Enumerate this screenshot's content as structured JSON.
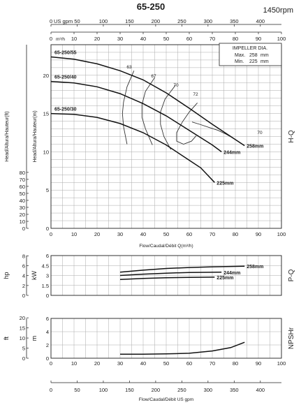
{
  "header": {
    "title": "65-250",
    "speed": "1450rpm"
  },
  "chart_data": [
    {
      "type": "line",
      "name": "H-Q",
      "panel_label": "H-Q",
      "top_axis_1": {
        "unit": "US gpm",
        "ticks": [
          0,
          50,
          100,
          150,
          200,
          250,
          300,
          350,
          400
        ],
        "max": 440.3
      },
      "top_axis_2": {
        "unit": "m³/h",
        "ticks": [
          0,
          10,
          20,
          30,
          40,
          50,
          60,
          70,
          80,
          90,
          100
        ]
      },
      "xlabel": "Flow/Caudal/Débit Q(m³/h)",
      "xticks": [
        0,
        10,
        20,
        30,
        40,
        50,
        60,
        70,
        80,
        90,
        100
      ],
      "xlim": [
        0,
        100
      ],
      "left_axis_outer": {
        "label": "Head/Altura/Hauteur(ft)",
        "ticks": [
          0,
          10,
          20,
          30,
          40,
          50,
          60,
          70,
          80
        ],
        "max": 262.5
      },
      "ylabel": "Head/Altura/Hauteur(m)",
      "yticks": [
        0,
        5,
        10,
        15,
        20
      ],
      "ylim": [
        0,
        24
      ],
      "impeller_box": {
        "title": "IMPELLER DIA.",
        "max_label": "Max.",
        "max_value": "258",
        "min_label": "Min.",
        "min_value": "225",
        "unit": "mm"
      },
      "series": [
        {
          "name": "65-250/55",
          "end_label": "258mm",
          "x": [
            0,
            10,
            20,
            30,
            40,
            50,
            60,
            70,
            80,
            84
          ],
          "y": [
            22.4,
            22.1,
            21.5,
            20.6,
            19.4,
            17.7,
            15.7,
            13.6,
            11.6,
            10.8
          ]
        },
        {
          "name": "65-250/40",
          "end_label": "244mm",
          "x": [
            0,
            10,
            20,
            30,
            40,
            50,
            60,
            70,
            74
          ],
          "y": [
            19.2,
            19.0,
            18.5,
            17.6,
            16.3,
            14.7,
            12.8,
            10.9,
            10.0
          ]
        },
        {
          "name": "65-250/30",
          "end_label": "225mm",
          "x": [
            0,
            10,
            20,
            30,
            40,
            50,
            60,
            65,
            71
          ],
          "y": [
            15.0,
            14.9,
            14.5,
            13.7,
            12.5,
            10.9,
            8.9,
            7.9,
            6.0
          ]
        }
      ],
      "efficiency_labels": [
        "63",
        "67",
        "70",
        "72",
        "70"
      ],
      "efficiency_contours": [
        {
          "label": "63",
          "x": [
            36,
            33,
            31.5,
            31,
            31.5,
            33
          ],
          "y": [
            20.6,
            18.5,
            16.5,
            15.0,
            13.3,
            11.0
          ]
        },
        {
          "label": "67",
          "x": [
            45,
            41,
            39.5,
            39.5,
            41,
            44
          ],
          "y": [
            19.7,
            17.9,
            16.2,
            14.5,
            13.0,
            10.9
          ]
        },
        {
          "label": "70",
          "x": [
            54,
            49.5,
            47.5,
            47.5,
            49,
            52
          ],
          "y": [
            18.7,
            16.9,
            15.2,
            13.6,
            12.0,
            10.3
          ]
        },
        {
          "label": "72",
          "x": [
            63.5,
            60,
            57,
            54.5,
            54.5,
            57.5,
            61,
            63
          ],
          "y": [
            16.4,
            15.2,
            13.9,
            12.5,
            11.4,
            11.0,
            11.4,
            12.1
          ]
        },
        {
          "label": "70",
          "x": [
            79,
            76,
            72.5,
            68.5,
            64.5,
            61.2
          ],
          "y": [
            11.8,
            12.3,
            12.8,
            13.2,
            13.6,
            13.9
          ]
        }
      ]
    },
    {
      "type": "line",
      "name": "P-Q",
      "panel_label": "P-Q",
      "left_axis_outer": {
        "label": "hp",
        "ticks": [
          0,
          2,
          4,
          6,
          8
        ],
        "max": 8.05
      },
      "ylabel": "kW",
      "yticks": [
        0,
        1.5,
        3,
        4.5,
        6
      ],
      "ytick_labels": [
        "0",
        "1.5",
        "3",
        "4.5",
        "6"
      ],
      "ylim": [
        0,
        6
      ],
      "xlim": [
        0,
        100
      ],
      "series": [
        {
          "name": "258mm",
          "x": [
            30,
            40,
            50,
            60,
            70,
            80,
            84
          ],
          "y": [
            3.5,
            3.8,
            4.05,
            4.2,
            4.3,
            4.37,
            4.4
          ]
        },
        {
          "name": "244mm",
          "x": [
            30,
            40,
            50,
            60,
            74
          ],
          "y": [
            3.0,
            3.2,
            3.35,
            3.45,
            3.5
          ]
        },
        {
          "name": "225mm",
          "x": [
            30,
            40,
            50,
            60,
            71
          ],
          "y": [
            2.4,
            2.55,
            2.65,
            2.72,
            2.75
          ]
        }
      ]
    },
    {
      "type": "line",
      "name": "NPSHr",
      "panel_label": "NPSHr",
      "left_axis_outer": {
        "label": "ft",
        "ticks": [
          0,
          5,
          10,
          15,
          20
        ],
        "max": 19.7
      },
      "ylabel": "m",
      "yticks": [
        0,
        2,
        4,
        6
      ],
      "ylim": [
        0,
        6
      ],
      "xlim": [
        0,
        100
      ],
      "series": [
        {
          "name": "NPSHr",
          "x": [
            30,
            40,
            50,
            60,
            70,
            78,
            84
          ],
          "y": [
            0.6,
            0.6,
            0.65,
            0.75,
            1.1,
            1.6,
            2.4
          ]
        }
      ]
    }
  ],
  "bottom_axis": {
    "ticks": [
      0,
      50,
      100,
      150,
      200,
      250,
      300,
      350,
      400
    ],
    "label": "Flow/Caudal/Débit  US gpm"
  }
}
